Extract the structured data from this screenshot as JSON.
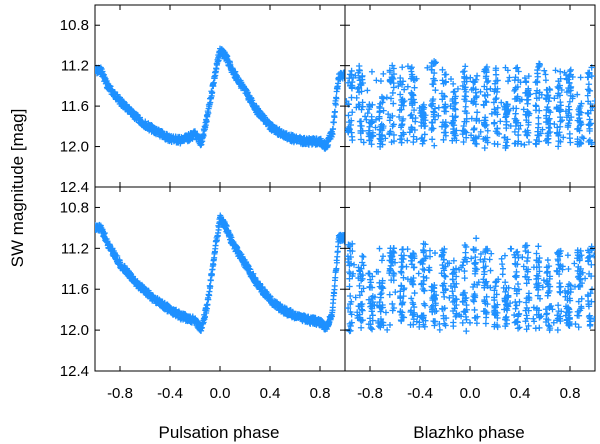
{
  "chart_data": [
    {
      "type": "scatter",
      "panel": "top-left",
      "x": [
        -0.95,
        -0.9,
        -0.8,
        -0.7,
        -0.6,
        -0.5,
        -0.4,
        -0.3,
        -0.2,
        -0.15,
        -0.1,
        -0.05,
        0.0,
        0.05,
        0.1,
        0.2,
        0.3,
        0.4,
        0.5,
        0.6,
        0.7,
        0.8,
        0.85,
        0.9,
        0.95
      ],
      "series": [
        {
          "name": "",
          "values": [
            11.25,
            11.4,
            11.55,
            11.68,
            11.78,
            11.86,
            11.92,
            11.94,
            11.88,
            11.97,
            11.7,
            11.35,
            11.05,
            11.12,
            11.25,
            11.45,
            11.65,
            11.8,
            11.88,
            11.93,
            11.95,
            11.95,
            12.0,
            11.85,
            11.3
          ]
        }
      ],
      "xlim": [
        -1.0,
        1.0
      ],
      "ylim": [
        12.4,
        10.6
      ],
      "marker": "+",
      "color": "#1e90ff"
    },
    {
      "type": "scatter",
      "panel": "top-right",
      "x": [
        -0.95,
        -0.85,
        -0.75,
        -0.65,
        -0.55,
        -0.45,
        -0.35,
        -0.25,
        -0.15,
        -0.05,
        0.05,
        0.15,
        0.25,
        0.35,
        0.45,
        0.55,
        0.65,
        0.75,
        0.85,
        0.95
      ],
      "series": [
        {
          "name": "",
          "values": [
            11.2,
            11.9,
            11.3,
            11.8,
            11.25,
            12.0,
            11.4,
            11.95,
            11.3,
            11.85,
            11.25,
            12.0,
            11.35,
            11.9,
            11.3,
            11.95,
            11.25,
            11.85,
            11.4,
            12.0
          ]
        }
      ],
      "ylim_range": [
        11.2,
        12.05
      ],
      "xlim": [
        -1.0,
        1.0
      ],
      "ylim": [
        12.4,
        10.6
      ],
      "marker": "+",
      "color": "#1e90ff"
    },
    {
      "type": "scatter",
      "panel": "bottom-left",
      "x": [
        -0.95,
        -0.9,
        -0.8,
        -0.7,
        -0.6,
        -0.5,
        -0.4,
        -0.3,
        -0.2,
        -0.15,
        -0.1,
        -0.05,
        0.0,
        0.05,
        0.1,
        0.2,
        0.3,
        0.4,
        0.5,
        0.6,
        0.7,
        0.8,
        0.85,
        0.9,
        0.95
      ],
      "series": [
        {
          "name": "",
          "values": [
            11.0,
            11.15,
            11.35,
            11.5,
            11.62,
            11.72,
            11.8,
            11.87,
            11.9,
            12.0,
            11.75,
            11.3,
            10.9,
            11.0,
            11.15,
            11.35,
            11.55,
            11.7,
            11.8,
            11.86,
            11.9,
            11.92,
            11.98,
            11.82,
            11.1
          ]
        }
      ],
      "xlim": [
        -1.0,
        1.0
      ],
      "ylim": [
        12.4,
        10.6
      ],
      "marker": "+",
      "color": "#1e90ff"
    },
    {
      "type": "scatter",
      "panel": "bottom-right",
      "x": [
        -0.95,
        -0.85,
        -0.75,
        -0.65,
        -0.55,
        -0.45,
        -0.35,
        -0.25,
        -0.15,
        -0.05,
        0.05,
        0.15,
        0.25,
        0.35,
        0.45,
        0.55,
        0.65,
        0.75,
        0.85,
        0.95
      ],
      "series": [
        {
          "name": "",
          "values": [
            11.0,
            11.9,
            11.1,
            12.0,
            11.0,
            11.85,
            10.9,
            12.0,
            11.1,
            11.95,
            11.0,
            11.9,
            11.15,
            12.0,
            11.05,
            11.85,
            11.2,
            11.95,
            10.95,
            12.05
          ]
        }
      ],
      "xlim": [
        -1.0,
        1.0
      ],
      "ylim": [
        12.4,
        10.6
      ],
      "marker": "+",
      "color": "#1e90ff"
    }
  ],
  "axes": {
    "ylabel": "SW magnitude [mag]",
    "xlabel_left": "Pulsation phase",
    "xlabel_right": "Blazhko phase",
    "y_ticks": [
      "10.8",
      "11.2",
      "11.6",
      "12.0",
      "12.4"
    ],
    "y_tick_values": [
      10.8,
      11.2,
      11.6,
      12.0,
      12.4
    ],
    "x_ticks": [
      "-0.8",
      "-0.4",
      "0.0",
      "0.4",
      "0.8"
    ],
    "x_tick_values": [
      -0.8,
      -0.4,
      0.0,
      0.4,
      0.8
    ]
  }
}
